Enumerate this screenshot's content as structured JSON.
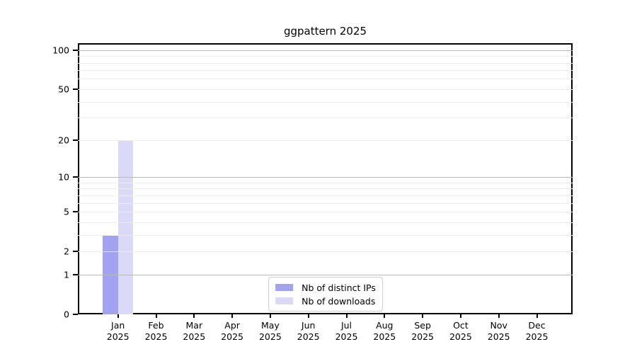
{
  "chart_data": {
    "type": "bar",
    "title": "ggpattern 2025",
    "categories": [
      "Jan",
      "Feb",
      "Mar",
      "Apr",
      "May",
      "Jun",
      "Jul",
      "Aug",
      "Sep",
      "Oct",
      "Nov",
      "Dec"
    ],
    "category_year": "2025",
    "series": [
      {
        "name": "Nb of distinct IPs",
        "color": "#a2a2f2",
        "values": [
          3,
          0,
          0,
          0,
          0,
          0,
          0,
          0,
          0,
          0,
          0,
          0
        ]
      },
      {
        "name": "Nb of downloads",
        "color": "#dadaf8",
        "values": [
          20,
          0,
          0,
          0,
          0,
          0,
          0,
          0,
          0,
          0,
          0,
          0
        ]
      }
    ],
    "yscale": "log1p",
    "ylim": [
      0,
      113
    ],
    "yticks": [
      0,
      1,
      2,
      5,
      10,
      20,
      50,
      100
    ],
    "y_minor_gridlines": [
      3,
      4,
      6,
      7,
      8,
      9,
      30,
      40,
      60,
      70,
      80,
      90
    ],
    "y_emphasis_gridlines": [
      1,
      10,
      100
    ],
    "xlabel": "",
    "ylabel": "",
    "grid": true,
    "legend_position": "lower center",
    "colors": {
      "grid_major": "#b9b9b9",
      "grid_minor": "#ededed",
      "spine": "#000000",
      "text": "#000000",
      "legend_border": "#cccccc",
      "background": "#ffffff"
    }
  }
}
